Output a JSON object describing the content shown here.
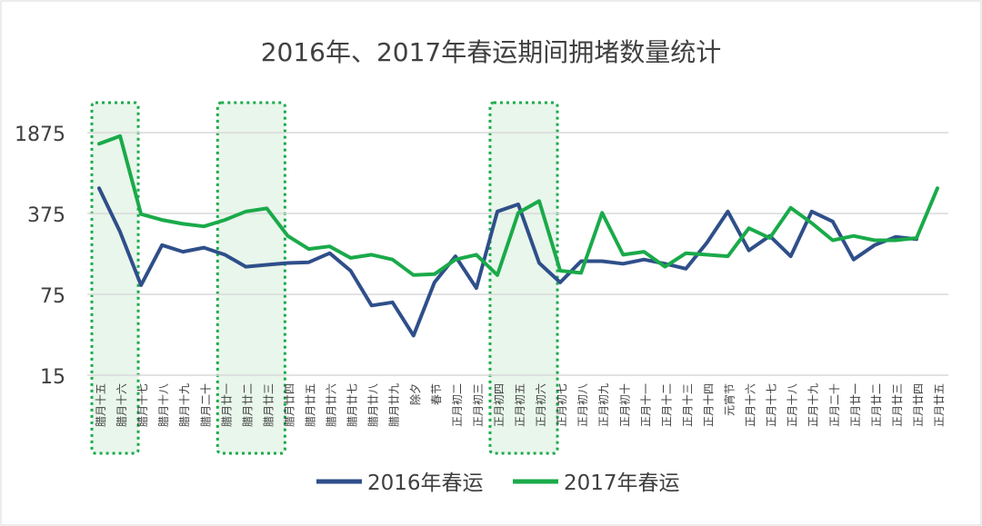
{
  "chart_data": {
    "type": "line",
    "title": "2016年、2017年春运期间拥堵数量统计",
    "y_scale": "log",
    "y_ticks": [
      "15",
      "75",
      "375",
      "1875"
    ],
    "ylim": [
      15,
      1875
    ],
    "grid": true,
    "legend_position": "bottom",
    "categories": [
      "腊月十五",
      "腊月十六",
      "腊月十七",
      "腊月十八",
      "腊月十九",
      "腊月二十",
      "腊月廿一",
      "腊月廿二",
      "腊月廿三",
      "腊月廿四",
      "腊月廿五",
      "腊月廿六",
      "腊月廿七",
      "腊月廿八",
      "腊月廿九",
      "除夕",
      "春节",
      "正月初二",
      "正月初三",
      "正月初四",
      "正月初五",
      "正月初六",
      "正月初七",
      "正月初八",
      "正月初九",
      "正月初十",
      "正月十一",
      "正月十二",
      "正月十三",
      "正月十四",
      "元宵节",
      "正月十六",
      "正月十七",
      "正月十八",
      "正月十九",
      "正月二十",
      "正月廿一",
      "正月廿二",
      "正月廿三",
      "正月廿四",
      "正月廿五"
    ],
    "series": [
      {
        "name": "2016年春运",
        "color": "#2f4f8a",
        "values": [
          620,
          260,
          90,
          200,
          175,
          190,
          165,
          130,
          135,
          140,
          142,
          170,
          120,
          60,
          64,
          33,
          95,
          160,
          85,
          390,
          450,
          140,
          95,
          145,
          145,
          138,
          150,
          138,
          125,
          210,
          390,
          180,
          240,
          160,
          390,
          320,
          150,
          200,
          235,
          225,
          null
        ]
      },
      {
        "name": "2017年春运",
        "color": "#1aaa4a",
        "values": [
          1500,
          1750,
          370,
          330,
          305,
          290,
          330,
          390,
          415,
          240,
          185,
          195,
          155,
          165,
          150,
          110,
          112,
          150,
          165,
          110,
          380,
          480,
          120,
          115,
          380,
          165,
          175,
          130,
          170,
          165,
          160,
          280,
          230,
          420,
          310,
          220,
          240,
          220,
          220,
          230,
          620
        ]
      }
    ],
    "highlight_ranges": [
      [
        0,
        1
      ],
      [
        6,
        8
      ],
      [
        19,
        21
      ]
    ]
  }
}
